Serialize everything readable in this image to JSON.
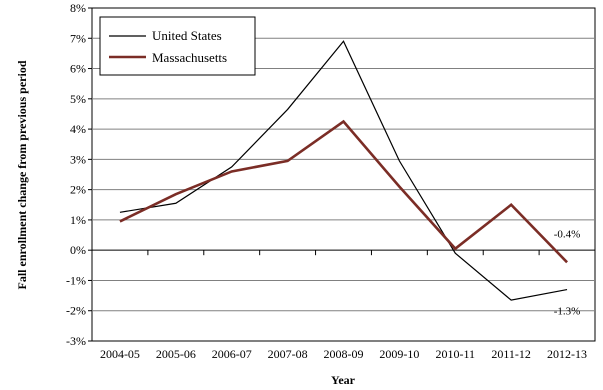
{
  "chart_data": {
    "type": "line",
    "title": "",
    "xlabel": "Year",
    "ylabel": "Fall enrollment change from previous period",
    "categories": [
      "2004-05",
      "2005-06",
      "2006-07",
      "2007-08",
      "2008-09",
      "2009-10",
      "2010-11",
      "2011-12",
      "2012-13"
    ],
    "ylim": [
      -3,
      8
    ],
    "yticks": [
      -3,
      -2,
      -1,
      0,
      1,
      2,
      3,
      4,
      5,
      6,
      7,
      8
    ],
    "ytick_labels": [
      "-3%",
      "-2%",
      "-1%",
      "0%",
      "1%",
      "2%",
      "3%",
      "4%",
      "5%",
      "6%",
      "7%",
      "8%"
    ],
    "grid": true,
    "legend_position": "top-left",
    "series": [
      {
        "name": "United States",
        "color": "#000000",
        "values": [
          1.25,
          1.55,
          2.75,
          4.65,
          6.9,
          2.95,
          -0.1,
          -1.65,
          -1.3
        ]
      },
      {
        "name": "Massachusetts",
        "color": "#7b2d26",
        "values": [
          0.95,
          1.85,
          2.6,
          2.95,
          4.25,
          2.1,
          0.05,
          1.5,
          -0.4
        ]
      }
    ],
    "annotations": [
      {
        "text": "-0.4%",
        "series": 1,
        "index": 8
      },
      {
        "text": "-1.3%",
        "series": 0,
        "index": 8
      }
    ]
  }
}
